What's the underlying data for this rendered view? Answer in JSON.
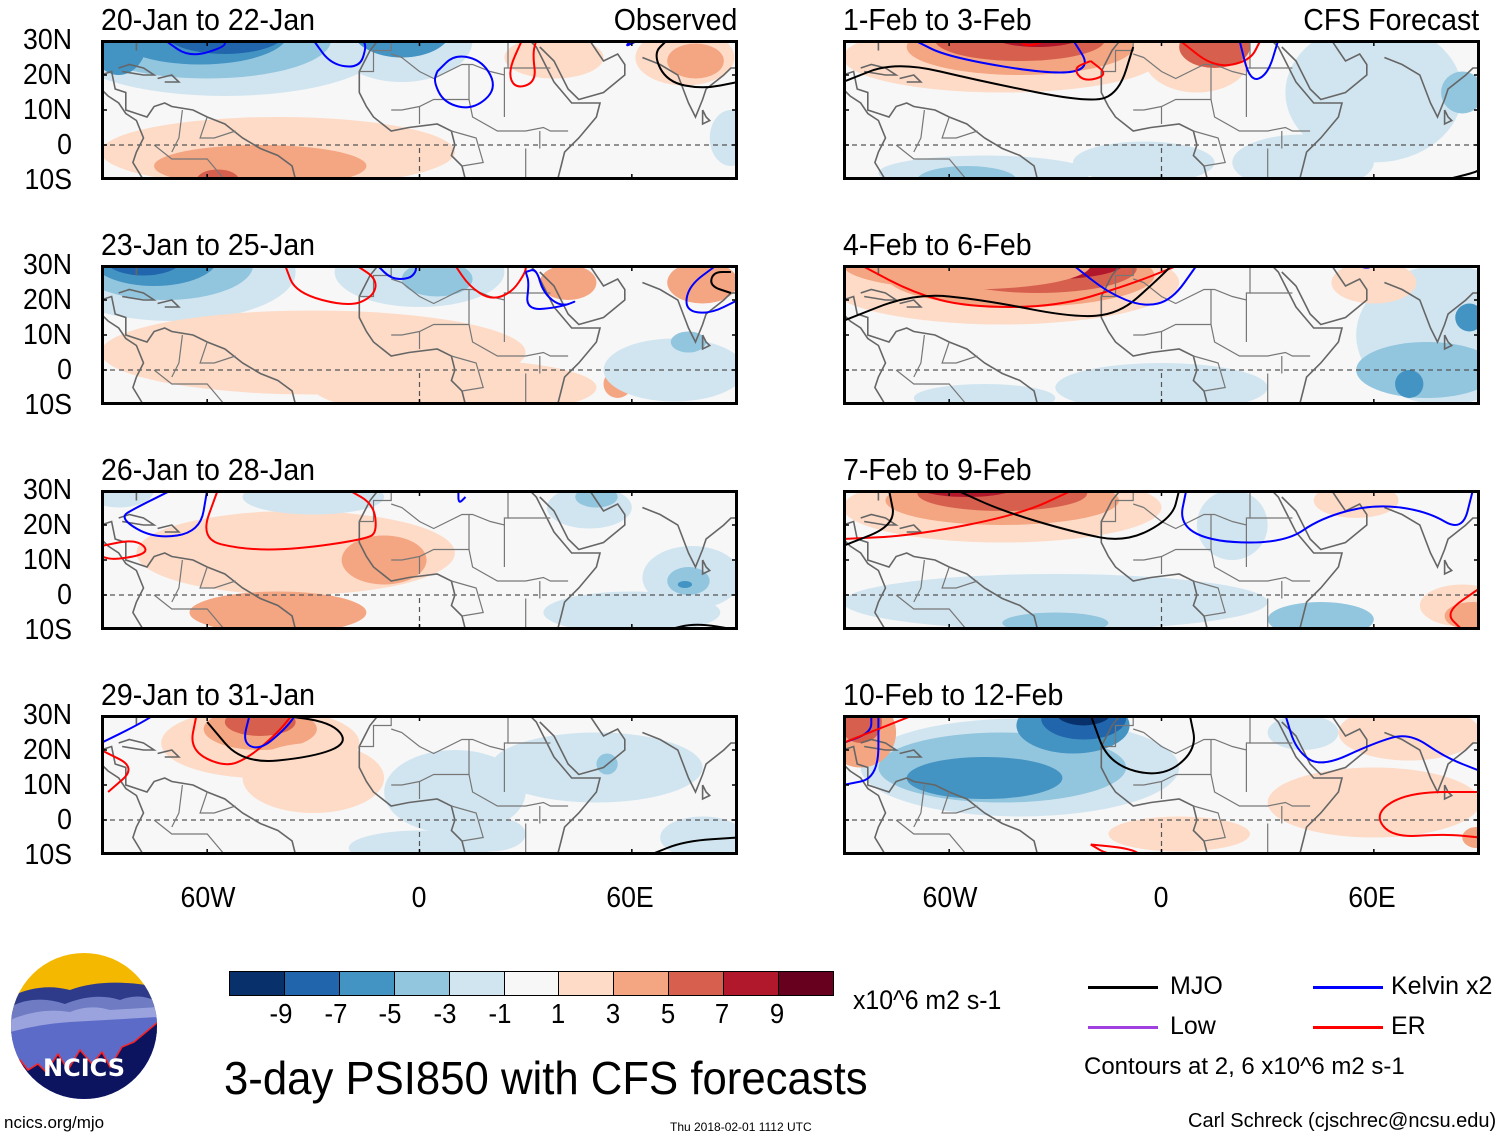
{
  "figure": {
    "title": "3-day PSI850 with CFS forecasts",
    "left_column_label": "Observed",
    "right_column_label": "CFS Forecast",
    "units": "x10^6 m2 s-1",
    "footer_left": "ncics.org/mjo",
    "footer_center": "Thu 2018-02-01 1112 UTC",
    "footer_right": "Carl Schreck (cjschrec@ncsu.edu)",
    "logo_text": "NCICS"
  },
  "axes": {
    "lat_ticks": [
      "30N",
      "20N",
      "10N",
      "0",
      "10S"
    ],
    "lon_ticks": [
      "60W",
      "0",
      "60E"
    ],
    "lat_range": [
      -10,
      30
    ],
    "lon_range": [
      -90,
      90
    ]
  },
  "panels": [
    {
      "period": "20-Jan to 22-Jan",
      "type": "observed"
    },
    {
      "period": "23-Jan to 25-Jan",
      "type": "observed"
    },
    {
      "period": "26-Jan to 28-Jan",
      "type": "observed"
    },
    {
      "period": "29-Jan to 31-Jan",
      "type": "observed"
    },
    {
      "period": "1-Feb to 3-Feb",
      "type": "forecast"
    },
    {
      "period": "4-Feb to 6-Feb",
      "type": "forecast"
    },
    {
      "period": "7-Feb to 9-Feb",
      "type": "forecast"
    },
    {
      "period": "10-Feb to 12-Feb",
      "type": "forecast"
    }
  ],
  "colorbar": {
    "labels": [
      "-9",
      "-7",
      "-5",
      "-3",
      "-1",
      "1",
      "3",
      "5",
      "7",
      "9"
    ],
    "colors": [
      "#08306b",
      "#2166ac",
      "#4393c3",
      "#92c5de",
      "#d1e5f0",
      "#f7f7f7",
      "#fddbc7",
      "#f4a582",
      "#d6604d",
      "#b2182b",
      "#67001f"
    ]
  },
  "legend": {
    "items": [
      {
        "label": "MJO",
        "color": "#000000"
      },
      {
        "label": "Kelvin x2",
        "color": "#0000ff"
      },
      {
        "label": "Low",
        "color": "#a040e0"
      },
      {
        "label": "ER",
        "color": "#ff0000"
      }
    ],
    "note": "Contours at 2, 6 x10^6 m2 s-1"
  }
}
